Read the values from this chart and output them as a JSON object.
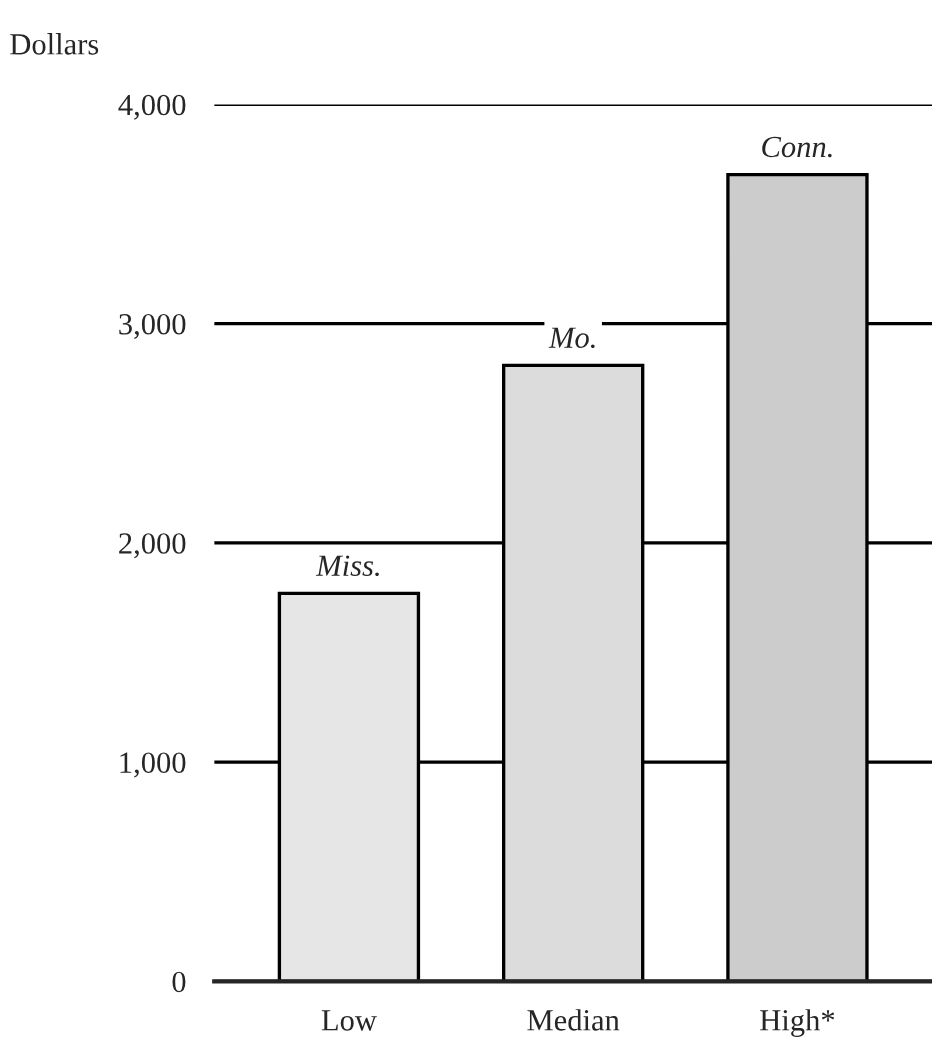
{
  "chart_data": {
    "type": "bar",
    "ylabel": "Dollars",
    "categories": [
      "Low",
      "Median",
      "High*"
    ],
    "values": [
      1770,
      2810,
      3680
    ],
    "colors": [
      "#e6e6e6",
      "#dcdcdc",
      "#cccccc"
    ],
    "ylim": [
      0,
      4000
    ],
    "yticks": [
      {
        "value": 0,
        "label": "0"
      },
      {
        "value": 1000,
        "label": "1,000"
      },
      {
        "value": 2000,
        "label": "2,000"
      },
      {
        "value": 3000,
        "label": "3,000"
      },
      {
        "value": 4000,
        "label": "4,000"
      }
    ],
    "grid": "y",
    "annotations": [
      {
        "text": "Miss.",
        "x": "Low",
        "y": 1770
      },
      {
        "text": "Mo.",
        "x": "Median",
        "y": 2810
      },
      {
        "text": "Conn.",
        "x": "High*",
        "y": 3680
      }
    ]
  }
}
